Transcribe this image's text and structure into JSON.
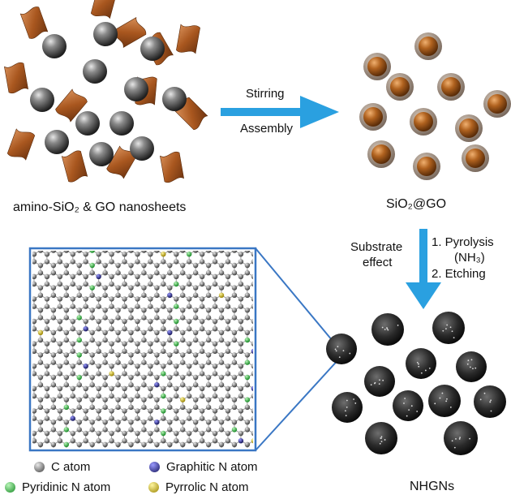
{
  "labels": {
    "reactants": "amino-SiO₂ & GO nanosheets",
    "step1_top": "Stirring",
    "step1_bottom": "Assembly",
    "intermediate": "SiO₂@GO",
    "substrate_effect_line1": "Substrate",
    "substrate_effect_line2": "effect",
    "step2_line1": "1. Pyrolysis",
    "step2_line2": "(NH₃)",
    "step2_line3": "2. Etching",
    "product": "NHGNs"
  },
  "legend": [
    {
      "label": "C atom",
      "color": "#555555"
    },
    {
      "label": "Graphitic N atom",
      "color": "#2b2b9a"
    },
    {
      "label": "Pyridinic N atom",
      "color": "#2fae3a"
    },
    {
      "label": "Pyrrolic N atom",
      "color": "#d8c21f"
    }
  ],
  "colors": {
    "arrow": "#2aa0e0",
    "zoom_box": "#3a77c4",
    "go_sheet": "#b5652a",
    "silica": "#4a4a4a",
    "hollow_sphere": "#1a1a1a"
  }
}
